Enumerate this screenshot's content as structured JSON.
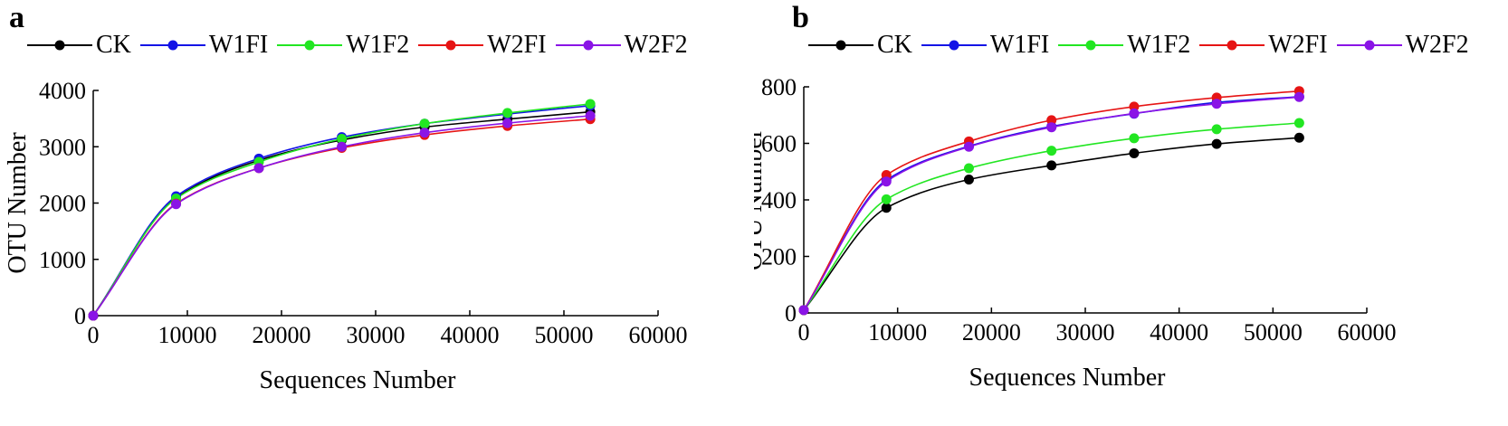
{
  "chart_data": [
    {
      "panel": "a",
      "type": "line",
      "xlabel": "Sequences Number",
      "ylabel": "OTU Number",
      "xlim": [
        0,
        60000
      ],
      "ylim": [
        0,
        4000
      ],
      "xticks": [
        0,
        10000,
        20000,
        30000,
        40000,
        50000,
        60000
      ],
      "yticks": [
        0,
        1000,
        2000,
        3000,
        4000
      ],
      "x": [
        0,
        8800,
        17600,
        26400,
        35200,
        44000,
        52800
      ],
      "legend_position": "top",
      "series": [
        {
          "name": "CK",
          "color": "#000000",
          "values": [
            0,
            2090,
            2760,
            3120,
            3350,
            3490,
            3620
          ]
        },
        {
          "name": "W1FI",
          "color": "#1414e6",
          "values": [
            0,
            2120,
            2790,
            3170,
            3410,
            3580,
            3730
          ]
        },
        {
          "name": "W1F2",
          "color": "#22e622",
          "values": [
            0,
            2080,
            2730,
            3140,
            3410,
            3600,
            3760
          ]
        },
        {
          "name": "W2FI",
          "color": "#e61414",
          "values": [
            0,
            1990,
            2620,
            2980,
            3210,
            3370,
            3490
          ]
        },
        {
          "name": "W2F2",
          "color": "#8a14e6",
          "values": [
            0,
            1980,
            2620,
            3000,
            3250,
            3420,
            3550
          ]
        }
      ]
    },
    {
      "panel": "b",
      "type": "line",
      "xlabel": "Sequences Number",
      "ylabel": "OTU Number",
      "xlim": [
        0,
        60000
      ],
      "ylim": [
        0,
        800
      ],
      "xticks": [
        0,
        10000,
        20000,
        30000,
        40000,
        50000,
        60000
      ],
      "yticks": [
        0,
        200,
        400,
        600,
        800
      ],
      "x": [
        0,
        8800,
        17600,
        26400,
        35200,
        44000,
        52800
      ],
      "legend_position": "top",
      "series": [
        {
          "name": "CK",
          "color": "#000000",
          "values": [
            10,
            372,
            472,
            522,
            565,
            598,
            620
          ]
        },
        {
          "name": "W1FI",
          "color": "#1414e6",
          "values": [
            10,
            470,
            590,
            660,
            705,
            745,
            765
          ]
        },
        {
          "name": "W1F2",
          "color": "#22e622",
          "values": [
            10,
            402,
            512,
            574,
            618,
            650,
            672
          ]
        },
        {
          "name": "W2FI",
          "color": "#e61414",
          "values": [
            10,
            488,
            607,
            682,
            730,
            762,
            785
          ]
        },
        {
          "name": "W2F2",
          "color": "#8a14e6",
          "values": [
            10,
            465,
            588,
            657,
            706,
            740,
            764
          ]
        }
      ]
    }
  ],
  "panels": {
    "a": {
      "letter": "a"
    },
    "b": {
      "letter": "b"
    }
  }
}
